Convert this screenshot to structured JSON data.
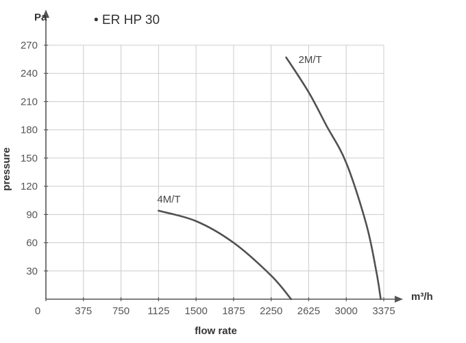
{
  "chart_data": {
    "type": "line",
    "title": "• ER HP 30",
    "xlabel": "flow rate",
    "ylabel": "pressure",
    "x_unit": "m³/h",
    "y_unit": "Pa",
    "xlim": [
      0,
      3375
    ],
    "ylim": [
      0,
      270
    ],
    "x_ticks": [
      "0",
      "375",
      "750",
      "1125",
      "1500",
      "1875",
      "2250",
      "2625",
      "3000",
      "3375"
    ],
    "y_ticks": [
      "30",
      "60",
      "90",
      "120",
      "150",
      "180",
      "210",
      "240",
      "270"
    ],
    "grid": true,
    "series": [
      {
        "name": "4M/T",
        "x": [
          1125,
          1500,
          1875,
          2250,
          2450
        ],
        "y": [
          94,
          83,
          60,
          25,
          0
        ]
      },
      {
        "name": "2M/T",
        "x": [
          2400,
          2625,
          2800,
          3000,
          3200,
          3300,
          3345
        ],
        "y": [
          257,
          220,
          185,
          145,
          80,
          30,
          0
        ]
      }
    ]
  }
}
